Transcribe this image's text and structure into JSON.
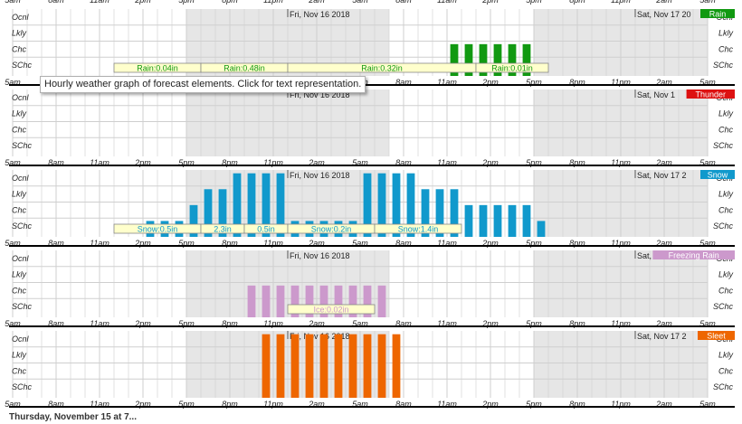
{
  "colors": {
    "night": "#e6e6e6",
    "grid": "#cfcfcf",
    "rain": "#119911",
    "thunder": "#dd1111",
    "snow": "#1199cc",
    "freezing_rain": "#cc99cc",
    "sleet": "#ee6600",
    "label_fill": "#ffffcc"
  },
  "tooltip": "Hourly weather graph of forecast elements. Click for text representation.",
  "footer_text": "Thursday, November 15 at 7...",
  "chart_data": {
    "type": "bar",
    "x_unit": "hour index (0 = 5am Thu Nov 15)",
    "x_range": [
      0,
      48
    ],
    "y_categories": [
      "SChc",
      "Chc",
      "Lkly",
      "Ocnl"
    ],
    "y_levels": {
      "SChc": 1,
      "Chc": 2,
      "Lkly": 3,
      "Ocnl": 4
    },
    "time_ticks": [
      "5am",
      "8am",
      "11am",
      "2pm",
      "5pm",
      "8pm",
      "11pm",
      "2am",
      "5am",
      "8am",
      "11am",
      "2pm",
      "5pm",
      "8pm",
      "11pm",
      "2am",
      "5am"
    ],
    "night_spans": [
      [
        12,
        26
      ],
      [
        36,
        48
      ]
    ],
    "panels": [
      {
        "name": "Rain",
        "color_key": "rain",
        "top_date_labels": [
          {
            "text": "Fri, Nov 16 2018",
            "hour": 19
          },
          {
            "text": "Sat, Nov 17 20",
            "hour": 43
          }
        ],
        "bars": [
          {
            "hour": 30,
            "level": 2
          },
          {
            "hour": 31,
            "level": 2
          },
          {
            "hour": 32,
            "level": 2
          },
          {
            "hour": 33,
            "level": 2
          },
          {
            "hour": 34,
            "level": 2
          },
          {
            "hour": 35,
            "level": 2
          }
        ],
        "amounts": [
          {
            "text": "Rain:0.04in",
            "start": 7,
            "end": 13
          },
          {
            "text": "Rain:0.48in",
            "start": 13,
            "end": 19
          },
          {
            "text": "Rain:0.32in",
            "start": 19,
            "end": 32
          },
          {
            "text": "Rain:0.01in",
            "start": 32,
            "end": 37
          }
        ]
      },
      {
        "name": "Thunder",
        "color_key": "thunder",
        "top_date_labels": [
          {
            "text": "Fri, Nov 16 2018",
            "hour": 19
          },
          {
            "text": "Sat, Nov 1",
            "hour": 43
          }
        ],
        "bars": [],
        "amounts": []
      },
      {
        "name": "Snow",
        "color_key": "snow",
        "top_date_labels": [
          {
            "text": "Fri, Nov 16 2018",
            "hour": 19
          },
          {
            "text": "Sat, Nov 17 2",
            "hour": 43
          }
        ],
        "bars": [
          {
            "hour": 9,
            "level": 1
          },
          {
            "hour": 10,
            "level": 1
          },
          {
            "hour": 11,
            "level": 1
          },
          {
            "hour": 12,
            "level": 2
          },
          {
            "hour": 13,
            "level": 3
          },
          {
            "hour": 14,
            "level": 3
          },
          {
            "hour": 15,
            "level": 4
          },
          {
            "hour": 16,
            "level": 4
          },
          {
            "hour": 17,
            "level": 4
          },
          {
            "hour": 18,
            "level": 4
          },
          {
            "hour": 19,
            "level": 1
          },
          {
            "hour": 20,
            "level": 1
          },
          {
            "hour": 21,
            "level": 1
          },
          {
            "hour": 22,
            "level": 1
          },
          {
            "hour": 23,
            "level": 1
          },
          {
            "hour": 24,
            "level": 4
          },
          {
            "hour": 25,
            "level": 4
          },
          {
            "hour": 26,
            "level": 4
          },
          {
            "hour": 27,
            "level": 4
          },
          {
            "hour": 28,
            "level": 3
          },
          {
            "hour": 29,
            "level": 3
          },
          {
            "hour": 30,
            "level": 3
          },
          {
            "hour": 31,
            "level": 2
          },
          {
            "hour": 32,
            "level": 2
          },
          {
            "hour": 33,
            "level": 2
          },
          {
            "hour": 34,
            "level": 2
          },
          {
            "hour": 35,
            "level": 2
          },
          {
            "hour": 36,
            "level": 1
          }
        ],
        "amounts": [
          {
            "text": "Snow:0.5in",
            "start": 7,
            "end": 13
          },
          {
            "text": "2.3in",
            "start": 13,
            "end": 16
          },
          {
            "text": "0.5in",
            "start": 16,
            "end": 19
          },
          {
            "text": "Snow:0.2in",
            "start": 19,
            "end": 25
          },
          {
            "text": "Snow:1.4in",
            "start": 25,
            "end": 31
          }
        ]
      },
      {
        "name": "Freezing Rain",
        "color_key": "freezing_rain",
        "top_date_labels": [
          {
            "text": "Fri, Nov 16 2018",
            "hour": 19
          },
          {
            "text": "Sat,",
            "hour": 43
          }
        ],
        "bars": [
          {
            "hour": 16,
            "level": 2
          },
          {
            "hour": 17,
            "level": 2
          },
          {
            "hour": 18,
            "level": 2
          },
          {
            "hour": 19,
            "level": 2
          },
          {
            "hour": 20,
            "level": 2
          },
          {
            "hour": 21,
            "level": 2
          },
          {
            "hour": 22,
            "level": 2
          },
          {
            "hour": 23,
            "level": 2
          },
          {
            "hour": 24,
            "level": 2
          },
          {
            "hour": 25,
            "level": 2
          }
        ],
        "amounts": [
          {
            "text": "Ice:0.02in",
            "start": 19,
            "end": 25
          }
        ]
      },
      {
        "name": "Sleet",
        "color_key": "sleet",
        "top_date_labels": [
          {
            "text": "Fri, Nov 16 2018",
            "hour": 19
          },
          {
            "text": "Sat, Nov 17 2",
            "hour": 43
          }
        ],
        "bars": [
          {
            "hour": 17,
            "level": 4
          },
          {
            "hour": 18,
            "level": 4
          },
          {
            "hour": 19,
            "level": 4
          },
          {
            "hour": 20,
            "level": 4
          },
          {
            "hour": 21,
            "level": 4
          },
          {
            "hour": 22,
            "level": 4
          },
          {
            "hour": 23,
            "level": 4
          },
          {
            "hour": 24,
            "level": 4
          },
          {
            "hour": 25,
            "level": 4
          },
          {
            "hour": 26,
            "level": 4
          }
        ],
        "amounts": []
      }
    ]
  }
}
